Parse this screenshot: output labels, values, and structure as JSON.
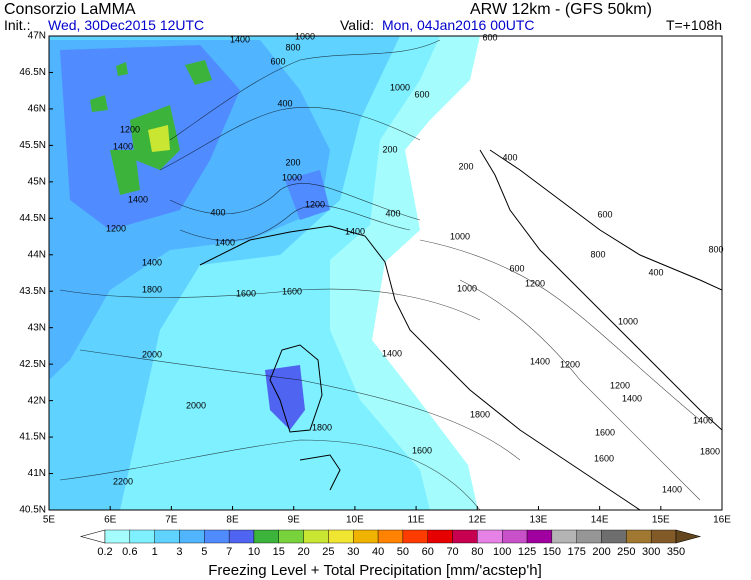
{
  "header": {
    "org": "Consorzio LaMMA",
    "init_label": "Init.:",
    "init_date": "Wed, 30Dec2015 12UTC",
    "valid_label": "Valid:",
    "valid_date": "Mon, 04Jan2016 00UTC",
    "model": "ARW 12km - (GFS 50km)",
    "lead": "T=+108h"
  },
  "map": {
    "lat_labels": [
      "47N",
      "46.5N",
      "46N",
      "45.5N",
      "45N",
      "44.5N",
      "44N",
      "43.5N",
      "43N",
      "42.5N",
      "42N",
      "41.5N",
      "41N",
      "40.5N"
    ],
    "lon_labels": [
      "5E",
      "6E",
      "7E",
      "8E",
      "9E",
      "10E",
      "11E",
      "12E",
      "13E",
      "14E",
      "15E",
      "16E"
    ],
    "contour_labels": [
      1400,
      800,
      1000,
      600,
      600,
      1000,
      600,
      400,
      1200,
      1400,
      200,
      200,
      400,
      200,
      1000,
      1400,
      1200,
      400,
      400,
      600,
      1200,
      1400,
      1400,
      1000,
      1400,
      800,
      400,
      800,
      600,
      1000,
      1200,
      1800,
      1600,
      1600,
      1000,
      1400,
      2000,
      1400,
      1200,
      1200,
      1400,
      2000,
      1800,
      1800,
      1400,
      1600,
      1600,
      1800,
      1600,
      2200,
      1400
    ]
  },
  "legend": {
    "labels": [
      0.2,
      0.6,
      1,
      3,
      5,
      7,
      10,
      15,
      20,
      25,
      30,
      40,
      50,
      60,
      70,
      80,
      100,
      125,
      150,
      175,
      200,
      250,
      300,
      350
    ],
    "colors": [
      "#ffffff",
      "#a5fcfc",
      "#7ff0ff",
      "#5fd2ff",
      "#50b4ff",
      "#508cff",
      "#4f64f0",
      "#3cb43c",
      "#78d23c",
      "#c8e632",
      "#f0e632",
      "#f0b400",
      "#ff8200",
      "#ff3c00",
      "#e60000",
      "#c80050",
      "#e682e6",
      "#c850c8",
      "#a000a0",
      "#b4b4b4",
      "#969696",
      "#6e6e6e",
      "#a07832",
      "#825a28",
      "#64461e"
    ],
    "title": "Freezing Level + Total Precipitation [mm/'acstep'h]"
  }
}
